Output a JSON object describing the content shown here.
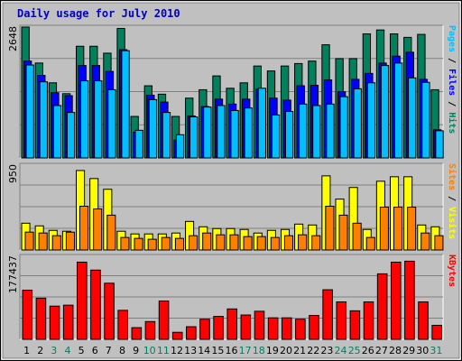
{
  "chart_data": [
    {
      "type": "bar",
      "title": "Daily usage for July 2010",
      "ylabel_max": "2648",
      "legend_text": [
        "Pages",
        "Files",
        "Hits"
      ],
      "legend_sep": " / ",
      "ylim": [
        0,
        2648
      ],
      "categories": [
        "1",
        "2",
        "3",
        "4",
        "5",
        "6",
        "7",
        "8",
        "9",
        "10",
        "11",
        "12",
        "13",
        "14",
        "15",
        "16",
        "17",
        "18",
        "19",
        "20",
        "21",
        "22",
        "23",
        "24",
        "25",
        "26",
        "27",
        "28",
        "29",
        "30",
        "31"
      ],
      "weekend_days": [
        "3",
        "4",
        "10",
        "11",
        "17",
        "18",
        "24",
        "25",
        "31"
      ],
      "series": [
        {
          "name": "Hits",
          "color": "#00805c",
          "values": [
            2648,
            1920,
            1520,
            1300,
            2260,
            2260,
            2120,
            2620,
            840,
            1460,
            1290,
            840,
            1210,
            1380,
            1660,
            1410,
            1520,
            1860,
            1760,
            1860,
            1910,
            1960,
            2290,
            2010,
            2010,
            2510,
            2590,
            2510,
            2440,
            2500,
            1380
          ]
        },
        {
          "name": "Files",
          "color": "#0000ff",
          "values": [
            1960,
            1670,
            1320,
            1260,
            1870,
            1870,
            1750,
            2190,
            520,
            1270,
            1130,
            360,
            850,
            1040,
            1190,
            1090,
            1190,
            1390,
            1210,
            1170,
            1460,
            1470,
            1580,
            1340,
            1590,
            1710,
            1920,
            2060,
            2140,
            1590,
            570
          ]
        },
        {
          "name": "Pages",
          "color": "#00bfff",
          "values": [
            1880,
            1540,
            1060,
            920,
            1560,
            1560,
            1380,
            2170,
            560,
            1180,
            920,
            470,
            830,
            1030,
            1060,
            960,
            1010,
            1410,
            870,
            940,
            1090,
            1060,
            1090,
            1240,
            1400,
            1520,
            1870,
            1920,
            1620,
            1530,
            550
          ]
        }
      ]
    },
    {
      "type": "bar",
      "ylabel_max": "950",
      "legend_text": [
        "Sites",
        "Visits"
      ],
      "legend_sep": " / ",
      "ylim": [
        0,
        950
      ],
      "categories": [
        "1",
        "2",
        "3",
        "4",
        "5",
        "6",
        "7",
        "8",
        "9",
        "10",
        "11",
        "12",
        "13",
        "14",
        "15",
        "16",
        "17",
        "18",
        "19",
        "20",
        "21",
        "22",
        "23",
        "24",
        "25",
        "26",
        "27",
        "28",
        "29",
        "30",
        "31"
      ],
      "series": [
        {
          "name": "Visits",
          "color": "#ffff00",
          "values": [
            300,
            270,
            220,
            210,
            890,
            800,
            680,
            210,
            180,
            180,
            180,
            190,
            320,
            260,
            240,
            240,
            230,
            190,
            220,
            230,
            290,
            280,
            830,
            570,
            700,
            230,
            770,
            820,
            820,
            280,
            260
          ]
        },
        {
          "name": "Sites",
          "color": "#ff8000",
          "values": [
            200,
            190,
            160,
            200,
            490,
            460,
            390,
            140,
            130,
            120,
            140,
            130,
            160,
            190,
            170,
            170,
            150,
            150,
            140,
            160,
            170,
            160,
            490,
            390,
            300,
            140,
            480,
            480,
            480,
            190,
            160
          ]
        }
      ]
    },
    {
      "type": "bar",
      "ylabel_max": "177437",
      "legend_text": [
        "KBytes"
      ],
      "legend_sep": "",
      "ylim": [
        0,
        177437
      ],
      "categories": [
        "1",
        "2",
        "3",
        "4",
        "5",
        "6",
        "7",
        "8",
        "9",
        "10",
        "11",
        "12",
        "13",
        "14",
        "15",
        "16",
        "17",
        "18",
        "19",
        "20",
        "21",
        "22",
        "23",
        "24",
        "25",
        "26",
        "27",
        "28",
        "29",
        "30",
        "31"
      ],
      "series": [
        {
          "name": "KBytes",
          "color": "#ff0000",
          "values": [
            105000,
            88000,
            71000,
            73000,
            165000,
            148000,
            120000,
            62000,
            25000,
            38000,
            82000,
            15000,
            27000,
            43000,
            49000,
            65000,
            52000,
            60000,
            46000,
            46000,
            43000,
            51000,
            106000,
            80000,
            61000,
            80000,
            140000,
            165000,
            167000,
            80000,
            30000
          ]
        }
      ]
    }
  ],
  "colors": {
    "background": "#c0c0c0",
    "frame_border": "#808080",
    "title": "#0000c0",
    "weekday_label": "#000000",
    "weekend_label": "#00805c"
  }
}
